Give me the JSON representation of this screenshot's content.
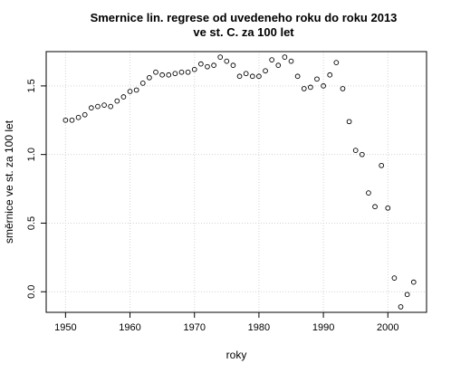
{
  "chart_data": {
    "type": "scatter",
    "title_lines": [
      "Smernice lin. regrese od uvedeneho roku do roku 2013",
      "ve st. C. za 100 let"
    ],
    "xlabel": "roky",
    "ylabel": "směrnice ve st. za 100 let",
    "xlim": [
      1947,
      2006
    ],
    "ylim": [
      -0.15,
      1.75
    ],
    "x_ticks": [
      1950,
      1960,
      1970,
      1980,
      1990,
      2000
    ],
    "y_ticks": [
      0.0,
      0.5,
      1.0,
      1.5
    ],
    "y_tick_labels": [
      "0.0",
      "0.5",
      "1.0",
      "1.5"
    ],
    "grid": true,
    "marker": "open-circle",
    "x": [
      1950,
      1951,
      1952,
      1953,
      1954,
      1955,
      1956,
      1957,
      1958,
      1959,
      1960,
      1961,
      1962,
      1963,
      1964,
      1965,
      1966,
      1967,
      1968,
      1969,
      1970,
      1971,
      1972,
      1973,
      1974,
      1975,
      1976,
      1977,
      1978,
      1979,
      1980,
      1981,
      1982,
      1983,
      1984,
      1985,
      1986,
      1987,
      1988,
      1989,
      1990,
      1991,
      1992,
      1993,
      1994,
      1995,
      1996,
      1997,
      1998,
      1999,
      2000,
      2001,
      2002,
      2003,
      2004
    ],
    "y": [
      1.25,
      1.25,
      1.27,
      1.29,
      1.34,
      1.35,
      1.36,
      1.35,
      1.39,
      1.42,
      1.46,
      1.47,
      1.52,
      1.56,
      1.6,
      1.58,
      1.58,
      1.59,
      1.6,
      1.6,
      1.62,
      1.66,
      1.64,
      1.65,
      1.71,
      1.68,
      1.65,
      1.57,
      1.59,
      1.57,
      1.57,
      1.61,
      1.69,
      1.65,
      1.71,
      1.68,
      1.57,
      1.48,
      1.49,
      1.55,
      1.5,
      1.58,
      1.67,
      1.48,
      1.24,
      1.03,
      1.0,
      0.72,
      0.62,
      0.92,
      0.61,
      0.1,
      -0.11,
      -0.02,
      0.07
    ]
  }
}
